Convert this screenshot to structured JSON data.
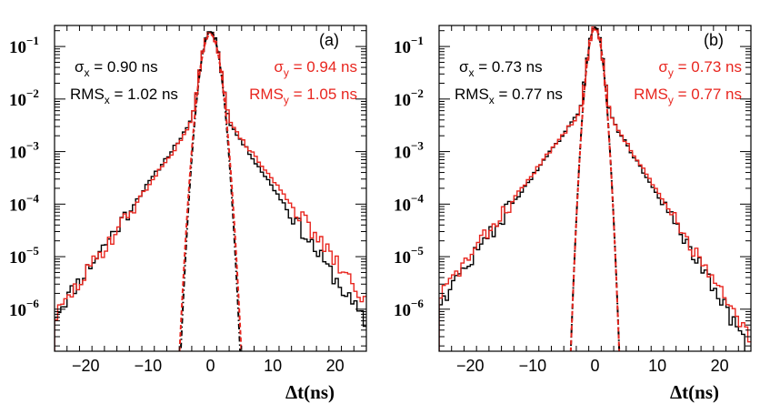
{
  "figure": {
    "xlabel": "Δt(ns)"
  },
  "chart_data": [
    {
      "type": "histogram",
      "panel_label": "(a)",
      "xlabel": "Δt(ns)",
      "xlim": [
        -25,
        25
      ],
      "ylim_log10": [
        -6.8,
        -0.6
      ],
      "xticks": [
        -20,
        -10,
        0,
        10,
        20
      ],
      "xtick_labels": [
        "−20",
        "−10",
        "0",
        "10",
        "20"
      ],
      "yticks_log10": [
        -1,
        -2,
        -3,
        -4,
        -5,
        -6
      ],
      "ytick_labels": [
        {
          "base": "10",
          "exp": "−1"
        },
        {
          "base": "10",
          "exp": "−2"
        },
        {
          "base": "10",
          "exp": "−3"
        },
        {
          "base": "10",
          "exp": "−4"
        },
        {
          "base": "10",
          "exp": "−5"
        },
        {
          "base": "10",
          "exp": "−6"
        }
      ],
      "annotations": {
        "sigma_x": {
          "sym": "σ",
          "sub": "x",
          "text": " = 0.90 ns"
        },
        "rms_x": {
          "sym": "RMS",
          "sub": "x",
          "text": " = 1.02 ns"
        },
        "sigma_y": {
          "sym": "σ",
          "sub": "y",
          "text": " = 0.94 ns"
        },
        "rms_y": {
          "sym": "RMS",
          "sub": "y",
          "text": " = 1.05 ns"
        }
      },
      "series": [
        {
          "name": "x",
          "color": "#000000",
          "sigma": 0.9,
          "peak": 0.19,
          "tail_left": 2.6,
          "tail_right": 2.5,
          "floor": 2.2e-07,
          "seed": 11
        },
        {
          "name": "y",
          "color": "#e8261f",
          "sigma": 0.94,
          "peak": 0.17,
          "tail_left": 2.6,
          "tail_right": 2.8,
          "floor": 2.2e-07,
          "seed": 29
        }
      ],
      "fits": [
        {
          "name": "gauss-x",
          "color": "#000000",
          "style": "dashdot",
          "mean": 0,
          "sigma": 0.9,
          "peak": 0.19
        },
        {
          "name": "gauss-y",
          "color": "#e8261f",
          "style": "dash",
          "mean": 0,
          "sigma": 0.94,
          "peak": 0.17
        }
      ]
    },
    {
      "type": "histogram",
      "panel_label": "(b)",
      "xlabel": "Δt(ns)",
      "xlim": [
        -25,
        25
      ],
      "ylim_log10": [
        -6.8,
        -0.6
      ],
      "xticks": [
        -20,
        -10,
        0,
        10,
        20
      ],
      "xtick_labels": [
        "−20",
        "−10",
        "0",
        "10",
        "20"
      ],
      "yticks_log10": [
        -1,
        -2,
        -3,
        -4,
        -5,
        -6
      ],
      "ytick_labels": [
        {
          "base": "10",
          "exp": "−1"
        },
        {
          "base": "10",
          "exp": "−2"
        },
        {
          "base": "10",
          "exp": "−3"
        },
        {
          "base": "10",
          "exp": "−4"
        },
        {
          "base": "10",
          "exp": "−5"
        },
        {
          "base": "10",
          "exp": "−6"
        }
      ],
      "annotations": {
        "sigma_x": {
          "sym": "σ",
          "sub": "x",
          "text": " = 0.73 ns"
        },
        "rms_x": {
          "sym": "RMS",
          "sub": "x",
          "text": " = 0.77 ns"
        },
        "sigma_y": {
          "sym": "σ",
          "sub": "y",
          "text": " = 0.73 ns"
        },
        "rms_y": {
          "sym": "RMS",
          "sub": "y",
          "text": " = 0.77 ns"
        }
      },
      "series": [
        {
          "name": "x",
          "color": "#000000",
          "sigma": 0.73,
          "peak": 0.23,
          "tail_left": 2.7,
          "tail_right": 2.2,
          "floor": 2.2e-07,
          "seed": 47
        },
        {
          "name": "y",
          "color": "#e8261f",
          "sigma": 0.73,
          "peak": 0.22,
          "tail_left": 2.8,
          "tail_right": 2.3,
          "floor": 2.2e-07,
          "seed": 83
        }
      ],
      "fits": [
        {
          "name": "gauss-x",
          "color": "#000000",
          "style": "dashdot",
          "mean": 0,
          "sigma": 0.73,
          "peak": 0.23
        },
        {
          "name": "gauss-y",
          "color": "#e8261f",
          "style": "dash",
          "mean": 0,
          "sigma": 0.73,
          "peak": 0.22
        }
      ]
    }
  ]
}
